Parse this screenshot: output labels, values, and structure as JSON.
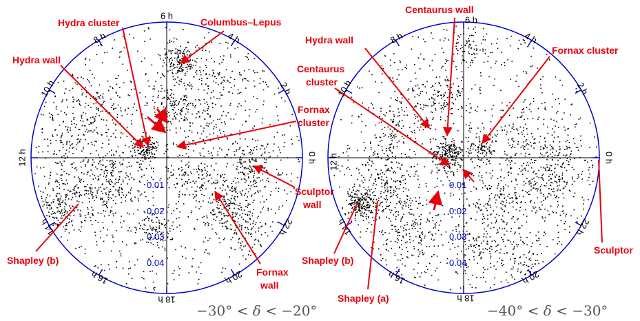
{
  "colors": {
    "ring": "#0000cc",
    "annotation": "#e8000b",
    "points": "#000000",
    "caption": "#555555"
  },
  "panels": [
    {
      "caption_parts": [
        "−30° < ",
        "δ",
        " < −20°"
      ],
      "hour_labels": [
        "0 h",
        "2 h",
        "4 h",
        "6 h",
        "8 h",
        "10 h",
        "12 h",
        "14 h",
        "16 h",
        "18 h",
        "20 h",
        "22 h"
      ],
      "redshift_labels": [
        "0.01",
        "0.02",
        "0.03",
        "0.04"
      ],
      "annotations": [
        {
          "text": "Hydra cluster"
        },
        {
          "text": "Columbus–Lepus"
        },
        {
          "text": "Hydra wall"
        },
        {
          "text": "Fornax"
        },
        {
          "text": "cluster"
        },
        {
          "text": "Sculptor"
        },
        {
          "text": "wall"
        },
        {
          "text": "Fornax"
        },
        {
          "text": "wall"
        },
        {
          "text": "Shapley (b)"
        }
      ]
    },
    {
      "caption_parts": [
        "−40° < ",
        "δ",
        " < −30°"
      ],
      "hour_labels": [
        "0 h",
        "2 h",
        "4 h",
        "6 h",
        "8 h",
        "10 h",
        "12 h",
        "14 h",
        "16 h",
        "18 h",
        "20 h",
        "22 h"
      ],
      "redshift_labels": [
        "0.01",
        "0.02",
        "0.03",
        "0.04"
      ],
      "annotations": [
        {
          "text": "Centaurus wall"
        },
        {
          "text": "Hydra wall"
        },
        {
          "text": "Fornax cluster"
        },
        {
          "text": "Centaurus"
        },
        {
          "text": "cluster"
        },
        {
          "text": "Shapley (b)"
        },
        {
          "text": "Sculptor"
        },
        {
          "text": "Shapley (a)"
        }
      ]
    }
  ]
}
